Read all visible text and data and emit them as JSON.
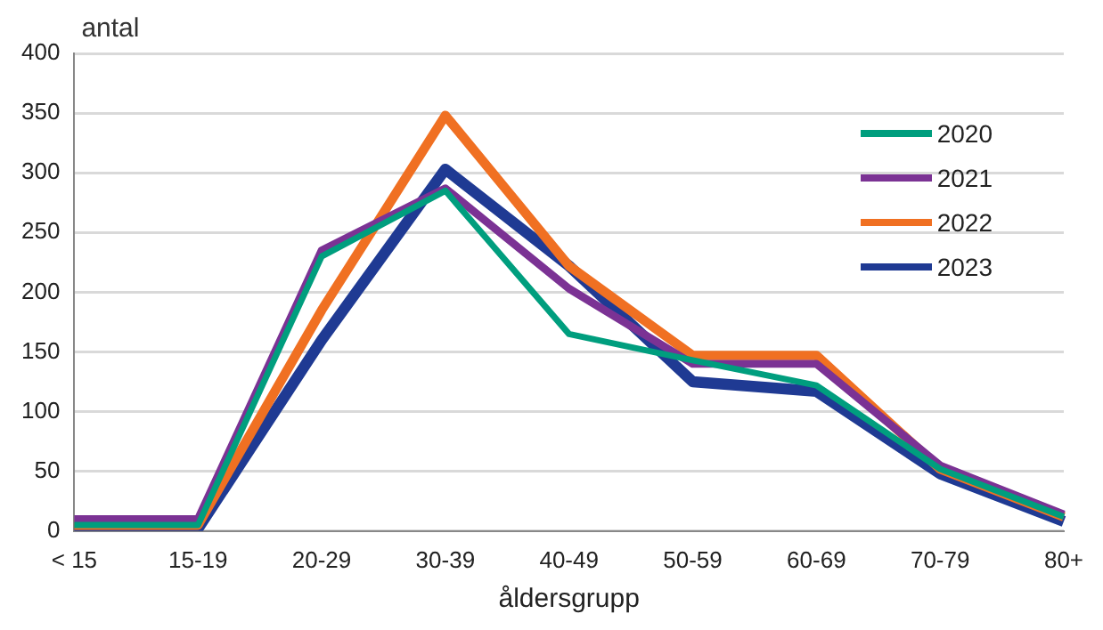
{
  "chart_data": {
    "type": "line",
    "xlabel": "åldersgrupp",
    "ylabel": "antal",
    "categories": [
      "< 15",
      "15-19",
      "20-29",
      "30-39",
      "40-49",
      "50-59",
      "60-69",
      "70-79",
      "80+"
    ],
    "series": [
      {
        "name": "2020",
        "color": "#009e7e",
        "values": [
          5,
          5,
          230,
          285,
          165,
          143,
          122,
          52,
          12
        ]
      },
      {
        "name": "2021",
        "color": "#7b3294",
        "values": [
          10,
          10,
          235,
          287,
          203,
          140,
          140,
          55,
          14
        ]
      },
      {
        "name": "2022",
        "color": "#f07022",
        "values": [
          5,
          5,
          185,
          348,
          222,
          147,
          147,
          52,
          12
        ]
      },
      {
        "name": "2023",
        "color": "#1f3a93",
        "values": [
          2,
          2,
          160,
          303,
          222,
          125,
          117,
          48,
          8
        ]
      }
    ],
    "ylim": [
      0,
      400
    ],
    "yticks": [
      0,
      50,
      100,
      150,
      200,
      250,
      300,
      350,
      400
    ],
    "grid": "y",
    "legend": "top right",
    "marker": "none",
    "line_style": "solid"
  }
}
